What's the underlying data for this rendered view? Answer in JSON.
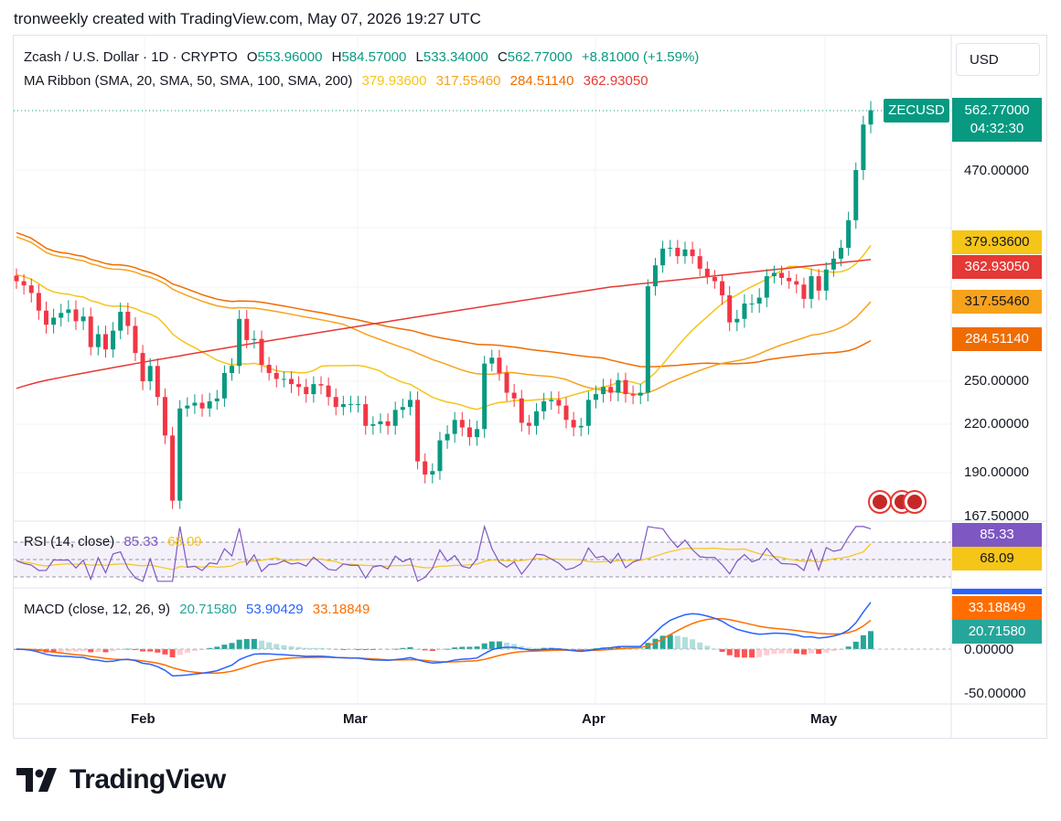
{
  "header": {
    "text": "tronweekly created with TradingView.com, May 07, 2026 19:27 UTC"
  },
  "symbol": {
    "title": "Zcash / U.S. Dollar · 1D · CRYPTO",
    "open_label": "O",
    "open": "553.96000",
    "high_label": "H",
    "high": "584.57000",
    "low_label": "L",
    "low": "533.34000",
    "close_label": "C",
    "close": "562.77000",
    "change": "+8.81000 (+1.59%)",
    "ticker": "ZECUSD",
    "price": "562.77000",
    "countdown": "04:32:30"
  },
  "currency": "USD",
  "ma_ribbon": {
    "label": "MA Ribbon (SMA, 20, SMA, 50, SMA, 100, SMA, 200)",
    "values": [
      "379.93600",
      "317.55460",
      "284.51140",
      "362.93050"
    ],
    "colors": [
      "#f5c518",
      "#f7a21b",
      "#ef6c00",
      "#e53935"
    ]
  },
  "rsi": {
    "label": "RSI (14, close)",
    "value": "85.33",
    "ma": "68.09",
    "color": "#7e57c2",
    "ma_color": "#f5c518"
  },
  "macd": {
    "label": "MACD (close, 12, 26, 9)",
    "hist": "20.71580",
    "macd": "53.90429",
    "signal": "33.18849",
    "macd_color": "#2962ff",
    "signal_color": "#ff6d00",
    "hist_color": "#26a69a"
  },
  "price_axis": [
    "470.00000",
    "250.00000",
    "220.00000",
    "190.00000",
    "167.50000"
  ],
  "macd_axis": [
    "0.00000",
    "-50.00000"
  ],
  "dates": [
    "Feb",
    "Mar",
    "Apr",
    "May"
  ],
  "brand": "TradingView",
  "colors": {
    "up": "#089981",
    "down": "#f23645",
    "bg": "#ffffff"
  },
  "chart_data": {
    "type": "candlestick",
    "ohlc_close_approx": [
      337,
      332,
      325,
      310,
      298,
      304,
      308,
      311,
      301,
      305,
      279,
      290,
      277,
      293,
      309,
      297,
      274,
      250,
      263,
      239,
      213,
      175,
      231,
      233,
      235,
      231,
      236,
      238,
      257,
      263,
      303,
      285,
      286,
      264,
      257,
      252,
      252,
      248,
      246,
      241,
      248,
      247,
      239,
      232,
      234,
      234,
      234,
      219,
      220,
      222,
      219,
      230,
      232,
      237,
      197,
      189,
      191,
      210,
      214,
      223,
      218,
      212,
      217,
      265,
      270,
      257,
      242,
      238,
      221,
      219,
      229,
      236,
      237,
      233,
      223,
      218,
      219,
      237,
      241,
      246,
      242,
      251,
      241,
      240,
      242,
      331,
      356,
      376,
      377,
      367,
      375,
      367,
      352,
      342,
      337,
      323,
      300,
      303,
      316,
      316,
      321,
      343,
      347,
      341,
      337,
      333,
      320,
      343,
      327,
      351,
      364,
      377,
      410,
      470,
      540,
      562
    ],
    "ma_ribbon_last": {
      "sma20": 379.936,
      "sma50": 317.5546,
      "sma100": 284.5114,
      "sma200": 362.9305
    },
    "rsi_last": {
      "rsi": 85.33,
      "rsi_ma": 68.09
    },
    "macd_last": {
      "macd": 53.90429,
      "signal": 33.18849,
      "histogram": 20.7158
    },
    "ylim": [
      167.5,
      600
    ],
    "xlabels": [
      "Feb",
      "Mar",
      "Apr",
      "May"
    ]
  }
}
